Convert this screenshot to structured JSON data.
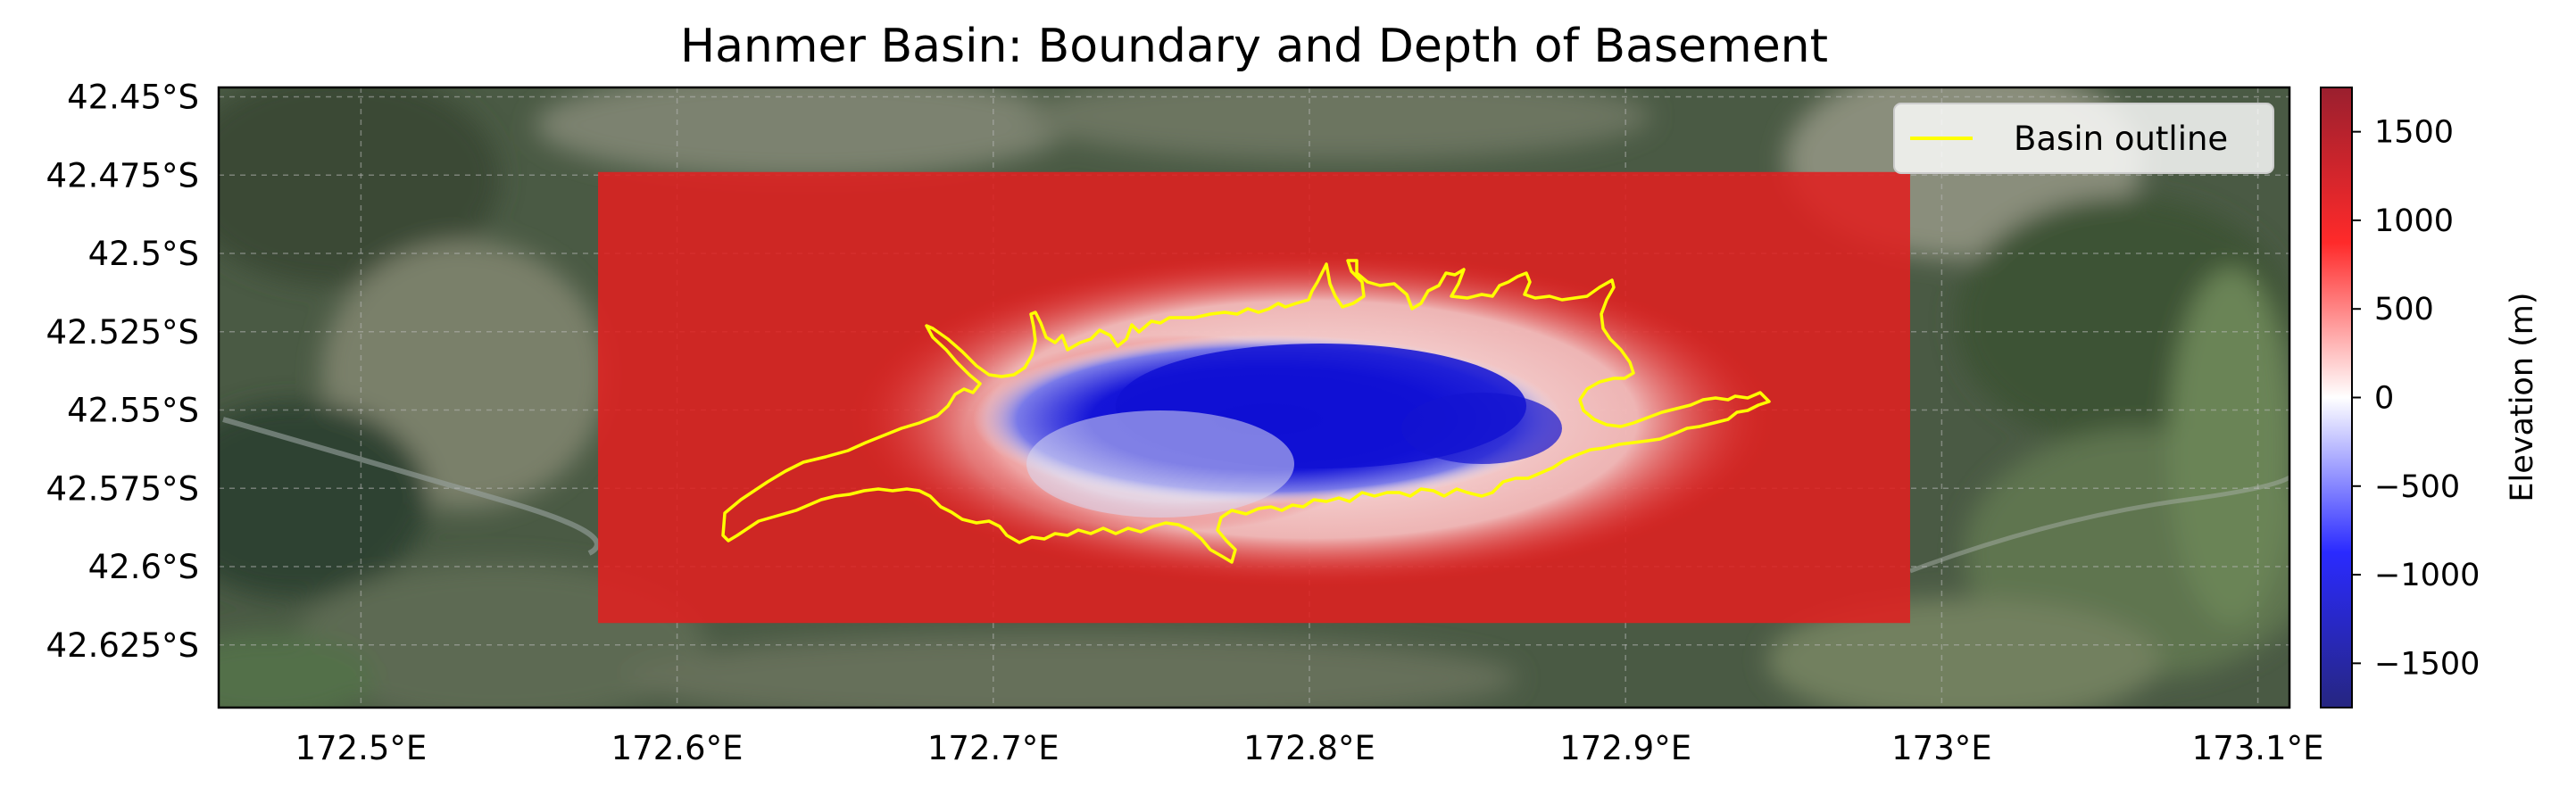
{
  "title": "Hanmer Basin: Boundary and Depth of Basement",
  "map": {
    "lon_range": [
      172.455,
      173.11
    ],
    "lat_range": [
      -42.645,
      -42.447
    ],
    "lon_ticks": [
      "172.5°E",
      "172.6°E",
      "172.7°E",
      "172.8°E",
      "172.9°E",
      "173°E",
      "173.1°E"
    ],
    "lon_tick_values": [
      172.5,
      172.6,
      172.7,
      172.8,
      172.9,
      173.0,
      173.1
    ],
    "lat_ticks": [
      "42.45°S",
      "42.475°S",
      "42.5°S",
      "42.525°S",
      "42.55°S",
      "42.575°S",
      "42.6°S",
      "42.625°S"
    ],
    "lat_tick_values": [
      -42.45,
      -42.475,
      -42.5,
      -42.525,
      -42.55,
      -42.575,
      -42.6,
      -42.625
    ],
    "depth_grid_extent": {
      "lon": [
        172.575,
        172.99
      ],
      "lat": [
        -42.618,
        -42.474
      ]
    },
    "gridlines": "on",
    "basemap": "satellite imagery",
    "colors": {
      "basin_outline": "#ffff00",
      "high": "#e41a1c",
      "zero": "#ffffff",
      "low": "#0000cc"
    }
  },
  "legend": {
    "label": "Basin outline",
    "placement": "top-right"
  },
  "colorbar": {
    "label": "Elevation (m)",
    "range": [
      -1750,
      1750
    ],
    "ticks": [
      "1500",
      "1000",
      "500",
      "0",
      "−500",
      "−1000",
      "−1500"
    ],
    "tick_values": [
      1500,
      1000,
      500,
      0,
      -500,
      -1000,
      -1500
    ],
    "colormap": "seismic (blue-white-red)"
  }
}
